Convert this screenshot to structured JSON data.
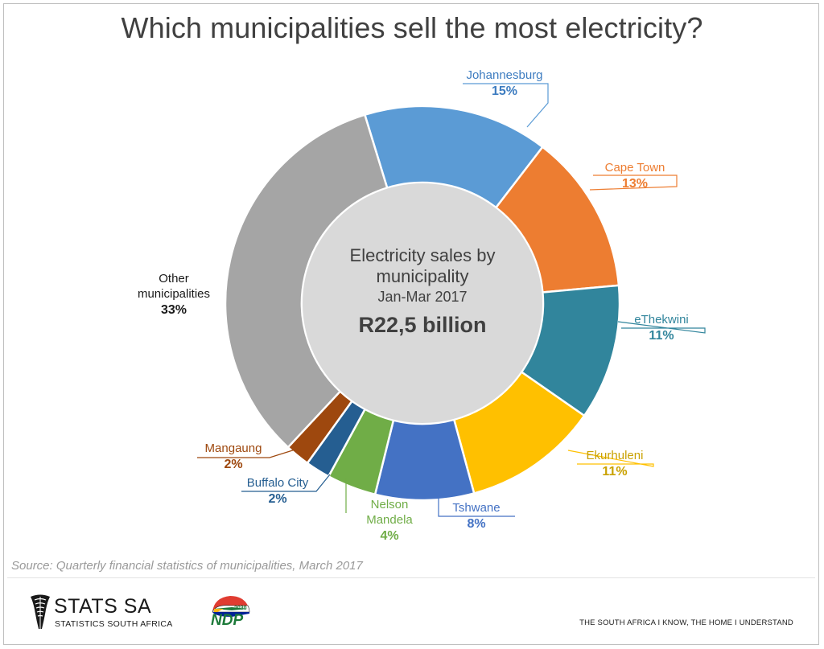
{
  "chart_data": {
    "type": "pie",
    "title": "Which municipalities sell the most electricity?",
    "center_label": {
      "line1": "Electricity sales by",
      "line2": "municipality",
      "period": "Jan-Mar 2017",
      "total": "R22,5 billion"
    },
    "slices": [
      {
        "name": "Johannesburg",
        "label_lines": [
          "Johannesburg"
        ],
        "value": 15,
        "value_label": "15%",
        "color": "#5b9bd5",
        "label_color": "#3d7cc0"
      },
      {
        "name": "Cape Town",
        "label_lines": [
          "Cape Town"
        ],
        "value": 13,
        "value_label": "13%",
        "color": "#ed7d31",
        "label_color": "#ed7d31"
      },
      {
        "name": "eThekwini",
        "label_lines": [
          "eThekwini"
        ],
        "value": 11,
        "value_label": "11%",
        "color": "#31859c",
        "label_color": "#31859c"
      },
      {
        "name": "Ekurhuleni",
        "label_lines": [
          "Ekurhuleni"
        ],
        "value": 11,
        "value_label": "11%",
        "color": "#ffc000",
        "label_color": "#c9a100"
      },
      {
        "name": "Tshwane",
        "label_lines": [
          "Tshwane"
        ],
        "value": 8,
        "value_label": "8%",
        "color": "#4472c4",
        "label_color": "#4472c4"
      },
      {
        "name": "Nelson Mandela",
        "label_lines": [
          "Nelson",
          "Mandela"
        ],
        "value": 4,
        "value_label": "4%",
        "color": "#70ad47",
        "label_color": "#70ad47"
      },
      {
        "name": "Buffalo City",
        "label_lines": [
          "Buffalo City"
        ],
        "value": 2,
        "value_label": "2%",
        "color": "#255e91",
        "label_color": "#255e91"
      },
      {
        "name": "Mangaung",
        "label_lines": [
          "Mangaung"
        ],
        "value": 2,
        "value_label": "2%",
        "color": "#9e480e",
        "label_color": "#9e480e"
      },
      {
        "name": "Other municipalities",
        "label_lines": [
          "Other",
          "municipalities"
        ],
        "value": 33,
        "value_label": "33%",
        "color": "#a5a5a5",
        "label_color": "#1a1a1a"
      }
    ]
  },
  "source": "Source: Quarterly financial statistics of municipalities, March 2017",
  "footer": {
    "logo_name": "STATS SA",
    "logo_sub": "STATISTICS SOUTH AFRICA",
    "ndp_text": "NDP",
    "ndp_year": "2030",
    "tagline": "THE SOUTH AFRICA I KNOW, THE HOME I UNDERSTAND"
  }
}
